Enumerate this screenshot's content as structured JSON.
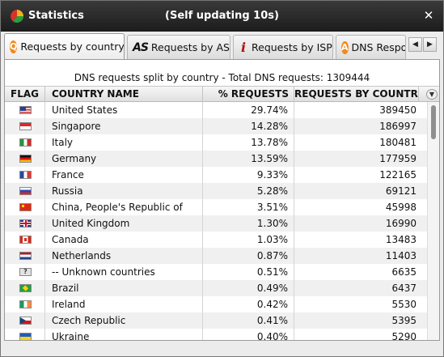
{
  "window": {
    "title": "Statistics",
    "subtitle": "(Self updating 10s)",
    "close_glyph": "✕"
  },
  "tabs": [
    {
      "label": "Requests by country",
      "icon": "q-icon",
      "glyph": "Q",
      "active": true
    },
    {
      "label": "Requests by ASN",
      "icon": "as-icon",
      "glyph": "AS",
      "active": false
    },
    {
      "label": "Requests by ISP",
      "icon": "info-icon",
      "glyph": "i",
      "active": false
    },
    {
      "label": "DNS Respo",
      "icon": "a-icon",
      "glyph": "A",
      "active": false
    }
  ],
  "tab_nav": {
    "prev": "◀",
    "next": "▶"
  },
  "panel": {
    "caption": "DNS requests split by country - Total DNS requests: 1309444"
  },
  "grid": {
    "columns": {
      "flag": "FLAG",
      "name": "COUNTRY NAME",
      "pct": "% REQUESTS",
      "req": "REQUESTS BY COUNTR"
    },
    "menu_glyph": "▼",
    "rows": [
      {
        "flag": "us",
        "name": "United States",
        "pct": "29.74%",
        "req": "389450"
      },
      {
        "flag": "sg",
        "name": "Singapore",
        "pct": "14.28%",
        "req": "186997"
      },
      {
        "flag": "it",
        "name": "Italy",
        "pct": "13.78%",
        "req": "180481"
      },
      {
        "flag": "de",
        "name": "Germany",
        "pct": "13.59%",
        "req": "177959"
      },
      {
        "flag": "fr",
        "name": "France",
        "pct": "9.33%",
        "req": "122165"
      },
      {
        "flag": "ru",
        "name": "Russia",
        "pct": "5.28%",
        "req": "69121"
      },
      {
        "flag": "cn",
        "name": "China, People's Republic of",
        "pct": "3.51%",
        "req": "45998"
      },
      {
        "flag": "gb",
        "name": "United Kingdom",
        "pct": "1.30%",
        "req": "16990"
      },
      {
        "flag": "ca",
        "name": "Canada",
        "pct": "1.03%",
        "req": "13483"
      },
      {
        "flag": "nl",
        "name": "Netherlands",
        "pct": "0.87%",
        "req": "11403"
      },
      {
        "flag": "un",
        "name": "-- Unknown countries",
        "pct": "0.51%",
        "req": "6635"
      },
      {
        "flag": "br",
        "name": "Brazil",
        "pct": "0.49%",
        "req": "6437"
      },
      {
        "flag": "ie",
        "name": "Ireland",
        "pct": "0.42%",
        "req": "5530"
      },
      {
        "flag": "cz",
        "name": "Czech Republic",
        "pct": "0.41%",
        "req": "5395"
      },
      {
        "flag": "ua",
        "name": "Ukraine",
        "pct": "0.40%",
        "req": "5290"
      }
    ]
  }
}
